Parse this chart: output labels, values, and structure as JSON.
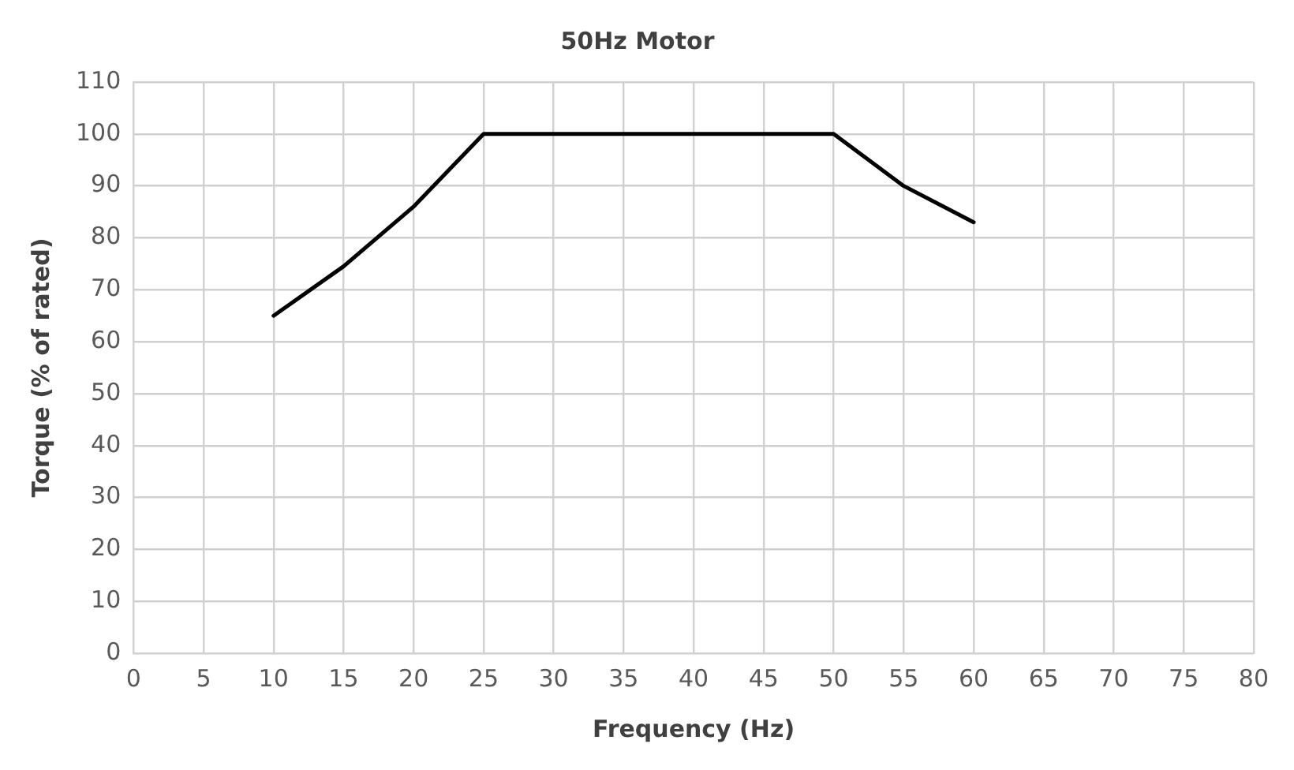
{
  "chart_data": {
    "type": "line",
    "title": "50Hz Motor",
    "xlabel": "Frequency (Hz)",
    "ylabel": "Torque (% of rated)",
    "x": [
      10,
      15,
      20,
      25,
      50,
      55,
      60
    ],
    "series": [
      {
        "color": "#000000",
        "values": [
          65,
          74.5,
          86,
          100,
          100,
          90,
          83
        ]
      }
    ],
    "xlim": [
      0,
      80
    ],
    "xticks": [
      0,
      5,
      10,
      15,
      20,
      25,
      30,
      35,
      40,
      45,
      50,
      55,
      60,
      65,
      70,
      75,
      80
    ],
    "ylim": [
      0,
      110
    ],
    "yticks": [
      0,
      10,
      20,
      30,
      40,
      50,
      60,
      70,
      80,
      90,
      100,
      110
    ],
    "grid": true,
    "legend": false,
    "marker": "none",
    "line_style": "solid"
  }
}
